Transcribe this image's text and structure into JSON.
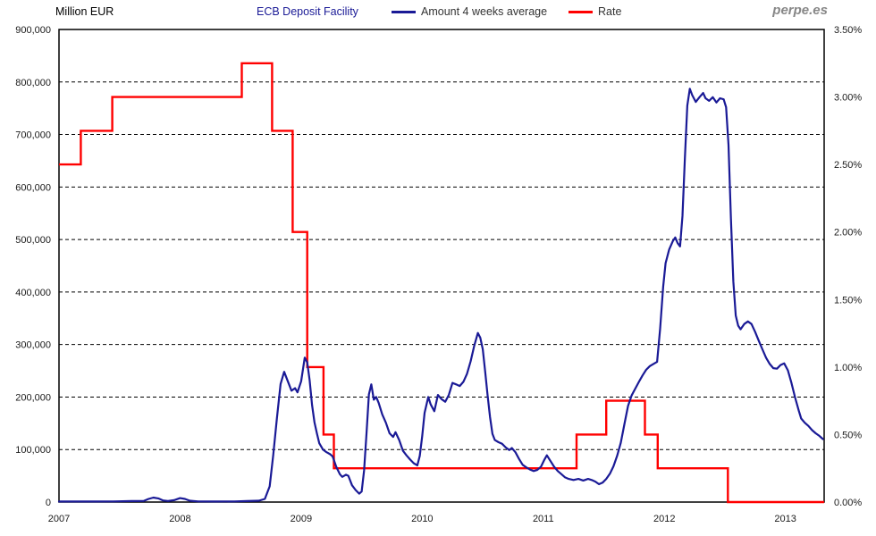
{
  "header": {
    "axis_unit_label": "Million EUR",
    "title": "ECB Deposit Facility",
    "watermark": "perpe.es",
    "legend": [
      {
        "label": "Amount 4 weeks average",
        "color": "#1A1A96"
      },
      {
        "label": "Rate",
        "color": "#FF0000"
      }
    ]
  },
  "chart_data": {
    "type": "line",
    "title": "ECB Deposit Facility",
    "legend_position": "top",
    "grid": {
      "horizontal": "dashed",
      "vertical": "none"
    },
    "left_axis": {
      "title": "Million EUR",
      "min": 0,
      "max": 900000,
      "tick_step": 100000,
      "tick_labels": [
        "900,000",
        "800,000",
        "700,000",
        "600,000",
        "500,000",
        "400,000",
        "300,000",
        "200,000",
        "100,000",
        "0"
      ]
    },
    "right_axis": {
      "title": "Rate",
      "min": 0,
      "max": 3.5,
      "tick_step": 0.5,
      "tick_labels": [
        "3.50%",
        "3.00%",
        "2.50%",
        "2.00%",
        "1.50%",
        "1.00%",
        "0.50%",
        "0.00%"
      ]
    },
    "x_axis": {
      "min": 2007,
      "max": 2013.32,
      "tick_values": [
        2007,
        2008,
        2009,
        2010,
        2011,
        2012,
        2013
      ],
      "tick_labels": [
        "2007",
        "2008",
        "2009",
        "2010",
        "2011",
        "2012",
        "2013"
      ]
    },
    "series": [
      {
        "name": "Amount 4 weeks average",
        "axis": "left",
        "style": "line",
        "color": "#1A1A96",
        "points": [
          [
            2007.0,
            1000
          ],
          [
            2007.15,
            1000
          ],
          [
            2007.3,
            1000
          ],
          [
            2007.45,
            1200
          ],
          [
            2007.6,
            1800
          ],
          [
            2007.7,
            2000
          ],
          [
            2007.74,
            6000
          ],
          [
            2007.78,
            8500
          ],
          [
            2007.82,
            7000
          ],
          [
            2007.86,
            3000
          ],
          [
            2007.9,
            2000
          ],
          [
            2007.95,
            3500
          ],
          [
            2008.0,
            7500
          ],
          [
            2008.04,
            6000
          ],
          [
            2008.08,
            2500
          ],
          [
            2008.15,
            1200
          ],
          [
            2008.3,
            1000
          ],
          [
            2008.45,
            1200
          ],
          [
            2008.55,
            1800
          ],
          [
            2008.65,
            2500
          ],
          [
            2008.7,
            6000
          ],
          [
            2008.74,
            30000
          ],
          [
            2008.77,
            90000
          ],
          [
            2008.8,
            160000
          ],
          [
            2008.83,
            225000
          ],
          [
            2008.86,
            248000
          ],
          [
            2008.89,
            230000
          ],
          [
            2008.92,
            212000
          ],
          [
            2008.95,
            217000
          ],
          [
            2008.97,
            209000
          ],
          [
            2009.0,
            230000
          ],
          [
            2009.03,
            275000
          ],
          [
            2009.05,
            266000
          ],
          [
            2009.07,
            232000
          ],
          [
            2009.09,
            185000
          ],
          [
            2009.11,
            152000
          ],
          [
            2009.13,
            131000
          ],
          [
            2009.15,
            112000
          ],
          [
            2009.18,
            100000
          ],
          [
            2009.21,
            95000
          ],
          [
            2009.24,
            91000
          ],
          [
            2009.26,
            87000
          ],
          [
            2009.29,
            67000
          ],
          [
            2009.32,
            53000
          ],
          [
            2009.34,
            48000
          ],
          [
            2009.37,
            52000
          ],
          [
            2009.39,
            50000
          ],
          [
            2009.42,
            32000
          ],
          [
            2009.45,
            23000
          ],
          [
            2009.48,
            16000
          ],
          [
            2009.5,
            20000
          ],
          [
            2009.52,
            60000
          ],
          [
            2009.54,
            130000
          ],
          [
            2009.56,
            205000
          ],
          [
            2009.58,
            224000
          ],
          [
            2009.6,
            195000
          ],
          [
            2009.62,
            200000
          ],
          [
            2009.64,
            189000
          ],
          [
            2009.67,
            167000
          ],
          [
            2009.7,
            151000
          ],
          [
            2009.73,
            131000
          ],
          [
            2009.76,
            124000
          ],
          [
            2009.78,
            133000
          ],
          [
            2009.81,
            118000
          ],
          [
            2009.84,
            98000
          ],
          [
            2009.87,
            89000
          ],
          [
            2009.9,
            81000
          ],
          [
            2009.93,
            74000
          ],
          [
            2009.96,
            70000
          ],
          [
            2009.98,
            88000
          ],
          [
            2010.0,
            125000
          ],
          [
            2010.02,
            170000
          ],
          [
            2010.05,
            200000
          ],
          [
            2010.07,
            186000
          ],
          [
            2010.1,
            173000
          ],
          [
            2010.13,
            204000
          ],
          [
            2010.16,
            196000
          ],
          [
            2010.19,
            191000
          ],
          [
            2010.22,
            204000
          ],
          [
            2010.25,
            227000
          ],
          [
            2010.28,
            224000
          ],
          [
            2010.31,
            221000
          ],
          [
            2010.34,
            229000
          ],
          [
            2010.37,
            244000
          ],
          [
            2010.4,
            268000
          ],
          [
            2010.43,
            298000
          ],
          [
            2010.46,
            322000
          ],
          [
            2010.48,
            313000
          ],
          [
            2010.5,
            291000
          ],
          [
            2010.52,
            248000
          ],
          [
            2010.54,
            203000
          ],
          [
            2010.56,
            162000
          ],
          [
            2010.58,
            130000
          ],
          [
            2010.6,
            118000
          ],
          [
            2010.63,
            114000
          ],
          [
            2010.66,
            111000
          ],
          [
            2010.69,
            104000
          ],
          [
            2010.72,
            99000
          ],
          [
            2010.74,
            103000
          ],
          [
            2010.77,
            95000
          ],
          [
            2010.8,
            82000
          ],
          [
            2010.83,
            71000
          ],
          [
            2010.86,
            66000
          ],
          [
            2010.89,
            62000
          ],
          [
            2010.92,
            59000
          ],
          [
            2010.95,
            61000
          ],
          [
            2010.98,
            67000
          ],
          [
            2011.01,
            81000
          ],
          [
            2011.03,
            89000
          ],
          [
            2011.06,
            78000
          ],
          [
            2011.09,
            67000
          ],
          [
            2011.12,
            59000
          ],
          [
            2011.15,
            53000
          ],
          [
            2011.18,
            47000
          ],
          [
            2011.21,
            44000
          ],
          [
            2011.25,
            42000
          ],
          [
            2011.29,
            44000
          ],
          [
            2011.33,
            41000
          ],
          [
            2011.37,
            44000
          ],
          [
            2011.4,
            42000
          ],
          [
            2011.43,
            39000
          ],
          [
            2011.46,
            34000
          ],
          [
            2011.49,
            37000
          ],
          [
            2011.52,
            44000
          ],
          [
            2011.55,
            54000
          ],
          [
            2011.58,
            68000
          ],
          [
            2011.61,
            88000
          ],
          [
            2011.64,
            113000
          ],
          [
            2011.67,
            148000
          ],
          [
            2011.7,
            183000
          ],
          [
            2011.73,
            203000
          ],
          [
            2011.76,
            216000
          ],
          [
            2011.79,
            229000
          ],
          [
            2011.82,
            241000
          ],
          [
            2011.85,
            252000
          ],
          [
            2011.88,
            259000
          ],
          [
            2011.91,
            263000
          ],
          [
            2011.94,
            267000
          ],
          [
            2011.965,
            330000
          ],
          [
            2011.99,
            410000
          ],
          [
            2012.01,
            455000
          ],
          [
            2012.04,
            481000
          ],
          [
            2012.07,
            497000
          ],
          [
            2012.09,
            504000
          ],
          [
            2012.11,
            493000
          ],
          [
            2012.13,
            487000
          ],
          [
            2012.15,
            545000
          ],
          [
            2012.17,
            655000
          ],
          [
            2012.19,
            755000
          ],
          [
            2012.21,
            787000
          ],
          [
            2012.23,
            775000
          ],
          [
            2012.26,
            762000
          ],
          [
            2012.29,
            771000
          ],
          [
            2012.32,
            779000
          ],
          [
            2012.34,
            769000
          ],
          [
            2012.37,
            764000
          ],
          [
            2012.4,
            771000
          ],
          [
            2012.43,
            761000
          ],
          [
            2012.46,
            769000
          ],
          [
            2012.49,
            767000
          ],
          [
            2012.51,
            752000
          ],
          [
            2012.53,
            680000
          ],
          [
            2012.55,
            540000
          ],
          [
            2012.57,
            420000
          ],
          [
            2012.59,
            355000
          ],
          [
            2012.61,
            336000
          ],
          [
            2012.63,
            329000
          ],
          [
            2012.66,
            339000
          ],
          [
            2012.69,
            344000
          ],
          [
            2012.72,
            339000
          ],
          [
            2012.75,
            324000
          ],
          [
            2012.78,
            307000
          ],
          [
            2012.81,
            291000
          ],
          [
            2012.84,
            275000
          ],
          [
            2012.87,
            263000
          ],
          [
            2012.9,
            255000
          ],
          [
            2012.93,
            254000
          ],
          [
            2012.96,
            261000
          ],
          [
            2012.99,
            264000
          ],
          [
            2013.02,
            251000
          ],
          [
            2013.05,
            227000
          ],
          [
            2013.08,
            199000
          ],
          [
            2013.11,
            174000
          ],
          [
            2013.13,
            159000
          ],
          [
            2013.16,
            151000
          ],
          [
            2013.19,
            145000
          ],
          [
            2013.22,
            137000
          ],
          [
            2013.25,
            131000
          ],
          [
            2013.28,
            126000
          ],
          [
            2013.31,
            120000
          ]
        ]
      },
      {
        "name": "Rate",
        "axis": "right",
        "style": "step",
        "color": "#FF0000",
        "points": [
          [
            2007.0,
            2.5
          ],
          [
            2007.18,
            2.75
          ],
          [
            2007.44,
            3.0
          ],
          [
            2008.51,
            3.25
          ],
          [
            2008.76,
            2.75
          ],
          [
            2008.93,
            2.0
          ],
          [
            2009.05,
            1.0
          ],
          [
            2009.185,
            0.5
          ],
          [
            2009.27,
            0.25
          ],
          [
            2011.275,
            0.5
          ],
          [
            2011.52,
            0.75
          ],
          [
            2011.84,
            0.5
          ],
          [
            2011.945,
            0.25
          ],
          [
            2012.525,
            0.0
          ],
          [
            2013.32,
            0.0
          ]
        ]
      }
    ]
  }
}
